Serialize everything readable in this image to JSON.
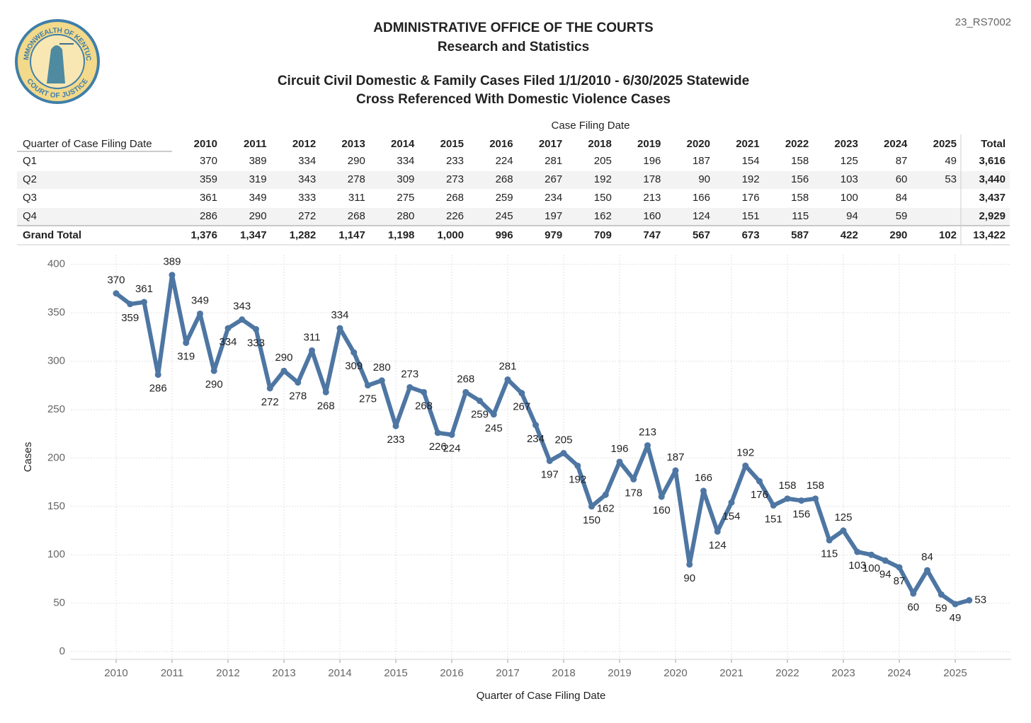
{
  "header": {
    "title": "ADMINISTRATIVE OFFICE OF THE COURTS",
    "subtitle": "Research and Statistics",
    "report_id": "23_RS7002",
    "seal_top": "COMMONWEALTH OF KENTUCKY",
    "seal_bottom": "COURT OF JUSTICE"
  },
  "table": {
    "column_group": "Case Filing Date",
    "row_header": "Quarter of Case Filing Date",
    "columns": [
      "2010",
      "2011",
      "2012",
      "2013",
      "2014",
      "2015",
      "2016",
      "2017",
      "2018",
      "2019",
      "2020",
      "2021",
      "2022",
      "2023",
      "2024",
      "2025",
      "Total"
    ],
    "rows": [
      {
        "label": "Q1",
        "cells": [
          "370",
          "389",
          "334",
          "290",
          "334",
          "233",
          "224",
          "281",
          "205",
          "196",
          "187",
          "154",
          "158",
          "125",
          "87",
          "49",
          "3,616"
        ]
      },
      {
        "label": "Q2",
        "cells": [
          "359",
          "319",
          "343",
          "278",
          "309",
          "273",
          "268",
          "267",
          "192",
          "178",
          "90",
          "192",
          "156",
          "103",
          "60",
          "53",
          "3,440"
        ]
      },
      {
        "label": "Q3",
        "cells": [
          "361",
          "349",
          "333",
          "311",
          "275",
          "268",
          "259",
          "234",
          "150",
          "213",
          "166",
          "176",
          "158",
          "100",
          "84",
          null,
          "3,437"
        ]
      },
      {
        "label": "Q4",
        "cells": [
          "286",
          "290",
          "272",
          "268",
          "280",
          "226",
          "245",
          "197",
          "162",
          "160",
          "124",
          "151",
          "115",
          "94",
          "59",
          null,
          "2,929"
        ]
      },
      {
        "label": "Grand Total",
        "cells": [
          "1,376",
          "1,347",
          "1,282",
          "1,147",
          "1,198",
          "1,000",
          "996",
          "979",
          "709",
          "747",
          "567",
          "673",
          "587",
          "422",
          "290",
          "102",
          "13,422"
        ]
      }
    ]
  },
  "chart_data": {
    "type": "line",
    "title": "Circuit Civil Domestic & Family Cases Filed 1/1/2010 - 6/30/2025 Statewide",
    "subtitle": "Cross Referenced With Domestic Violence Cases",
    "x_label": "Quarter of Case Filing Date",
    "y_label": "Cases",
    "color": "#4e76a3",
    "grid": true,
    "x": [
      2010,
      2010.25,
      2010.5,
      2010.75,
      2011,
      2011.25,
      2011.5,
      2011.75,
      2012,
      2012.25,
      2012.5,
      2012.75,
      2013,
      2013.25,
      2013.5,
      2013.75,
      2014,
      2014.25,
      2014.5,
      2014.75,
      2015,
      2015.25,
      2015.5,
      2015.75,
      2016,
      2016.25,
      2016.5,
      2016.75,
      2017,
      2017.25,
      2017.5,
      2017.75,
      2018,
      2018.25,
      2018.5,
      2018.75,
      2019,
      2019.25,
      2019.5,
      2019.75,
      2020,
      2020.25,
      2020.5,
      2020.75,
      2021,
      2021.25,
      2021.5,
      2021.75,
      2022,
      2022.25,
      2022.5,
      2022.75,
      2023,
      2023.25,
      2023.5,
      2023.75,
      2024,
      2024.25,
      2024.5,
      2024.75,
      2025,
      2025.25
    ],
    "values": [
      370,
      359,
      361,
      286,
      389,
      319,
      349,
      290,
      334,
      343,
      333,
      272,
      290,
      278,
      311,
      268,
      334,
      309,
      275,
      280,
      233,
      273,
      268,
      226,
      224,
      268,
      259,
      245,
      281,
      267,
      234,
      197,
      205,
      192,
      150,
      162,
      196,
      178,
      213,
      160,
      187,
      90,
      166,
      124,
      154,
      192,
      176,
      151,
      158,
      156,
      158,
      115,
      125,
      103,
      100,
      94,
      87,
      60,
      84,
      59,
      49,
      53
    ],
    "xlim": [
      2009.19,
      2026.0
    ],
    "xticks": [
      2010,
      2011,
      2012,
      2013,
      2014,
      2015,
      2016,
      2017,
      2018,
      2019,
      2020,
      2021,
      2022,
      2023,
      2024,
      2025
    ],
    "ylim": [
      -8,
      410
    ],
    "yticks": [
      0,
      50,
      100,
      150,
      200,
      250,
      300,
      350,
      400
    ]
  }
}
